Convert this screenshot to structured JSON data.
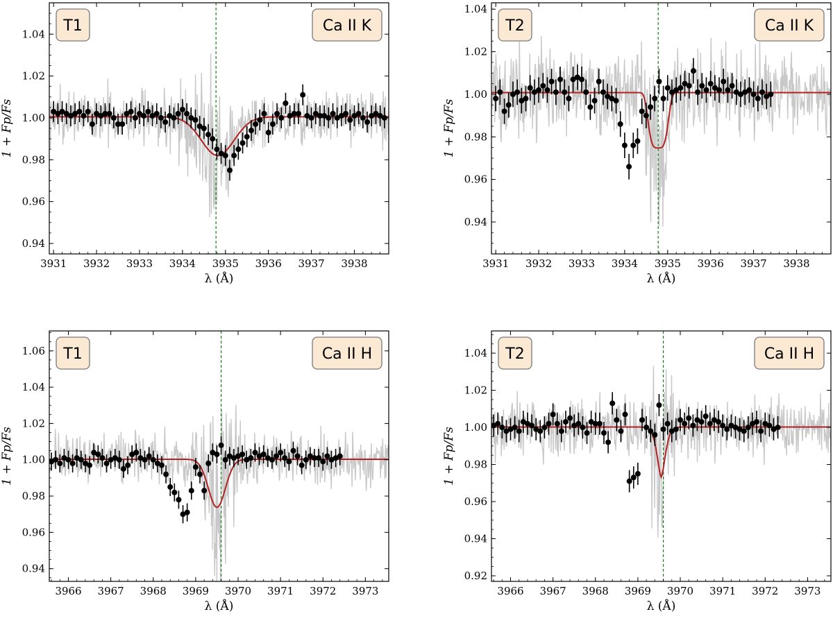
{
  "figure": {
    "y_axis_label": "1 + F_p/F_s",
    "colors": {
      "raw": "#c8c8c8",
      "binned": "#000000",
      "model": "#b22222",
      "line_center": "#1a7a1a",
      "badge_fill": "#fbe9d3",
      "badge_edge": "#7a7a7a"
    }
  },
  "chart_data": [
    {
      "type": "line",
      "panel": "top-left",
      "tag": "T1",
      "line": "Ca II K",
      "xlabel": "λ (Å)",
      "ylabel": "1 + Fp/Fs",
      "xlim": [
        3930.9,
        3938.8
      ],
      "ylim": [
        0.935,
        1.055
      ],
      "xticks": [
        3931,
        3932,
        3933,
        3934,
        3935,
        3936,
        3937,
        3938
      ],
      "yticks": [
        0.94,
        0.96,
        0.98,
        1.0,
        1.02,
        1.04
      ],
      "line_center": 3934.78,
      "model": {
        "baseline": 1.0005,
        "depth": 0.0185,
        "center": 3934.82,
        "sigma": 0.38
      },
      "raw_noise": {
        "base": 0.011,
        "peak": 0.045,
        "width": 0.35,
        "center": 3934.6
      },
      "binned": {
        "x_start": 3931.0,
        "x_step": 0.1,
        "err": 0.005,
        "y": [
          1.003,
          1.002,
          1.003,
          1.002,
          1.001,
          1.002,
          1.003,
          1.001,
          1.003,
          0.997,
          1.002,
          1.001,
          1.002,
          1.002,
          1.0,
          0.997,
          0.997,
          1.002,
          1.003,
          1.0,
          1.002,
          1.001,
          1.003,
          1.001,
          1.002,
          1.0,
          0.998,
          1.001,
          1.0,
          1.002,
          1.004,
          1.002,
          1.0,
          0.999,
          0.996,
          0.995,
          0.992,
          0.99,
          0.985,
          0.983,
          0.982,
          0.975,
          0.982,
          0.985,
          0.988,
          0.991,
          0.994,
          0.997,
          0.999,
          1.002,
          0.993,
          0.997,
          1.002,
          1.0,
          1.007,
          1.001,
          1.002,
          1.002,
          1.011,
          1.001,
          1.0,
          1.002,
          1.001,
          1.001,
          1.0,
          1.002,
          1.0,
          1.001,
          1.002,
          0.999,
          1.001,
          1.002,
          1.0,
          0.998,
          1.001,
          1.002,
          1.001,
          1.0
        ]
      }
    },
    {
      "type": "line",
      "panel": "top-right",
      "tag": "T2",
      "line": "Ca II K",
      "xlabel": "λ (Å)",
      "ylabel": "1 + Fp/Fs",
      "xlim": [
        3930.9,
        3938.8
      ],
      "ylim": [
        0.925,
        1.043
      ],
      "xticks": [
        3931,
        3932,
        3933,
        3934,
        3935,
        3936,
        3937,
        3938
      ],
      "yticks": [
        0.94,
        0.96,
        0.98,
        1.0,
        1.02,
        1.04
      ],
      "line_center": 3934.78,
      "model": {
        "baseline": 1.0008,
        "depth": 0.026,
        "center": 3934.78,
        "sigma": 0.22,
        "power": 4
      },
      "raw_noise": {
        "base": 0.017,
        "peak": 0.045,
        "width": 0.2,
        "center": 3934.8
      },
      "binned": {
        "x_start": 3931.0,
        "x_step": 0.1,
        "err": 0.006,
        "y": [
          0.998,
          1.001,
          0.992,
          0.995,
          1.0,
          1.001,
          0.997,
          0.998,
          1.003,
          1.001,
          1.002,
          1.004,
          1.002,
          1.006,
          1.001,
          1.007,
          1.001,
          0.998,
          1.007,
          1.008,
          1.007,
          1.001,
          0.994,
          0.997,
          1.006,
          1.001,
          0.999,
          0.998,
          0.997,
          0.986,
          0.976,
          0.966,
          0.976,
          0.978,
          0.992,
          0.99,
          0.994,
          0.998,
          1.006,
          0.998,
          1.003,
          1.001,
          1.002,
          1.003,
          1.005,
          1.004,
          1.011,
          1.001,
          1.004,
          1.002,
          1.005,
          1.003,
          1.002,
          1.006,
          1.002,
          1.004,
          1.001,
          1.0,
          1.001,
          1.002,
          1.0,
          0.998,
          1.001,
          0.999,
          1.0
        ]
      }
    },
    {
      "type": "line",
      "panel": "bottom-left",
      "tag": "T1",
      "line": "Ca II H",
      "xlabel": "λ (Å)",
      "ylabel": "1 + Fp/Fs",
      "xlim": [
        3965.55,
        3973.55
      ],
      "ylim": [
        0.933,
        1.071
      ],
      "xticks": [
        3966,
        3967,
        3968,
        3969,
        3970,
        3971,
        3972,
        3973
      ],
      "yticks": [
        0.94,
        0.96,
        0.98,
        1.0,
        1.02,
        1.04,
        1.06
      ],
      "line_center": 3969.6,
      "model": {
        "baseline": 1.0003,
        "depth": 0.0265,
        "center": 3969.5,
        "sigma": 0.2
      },
      "raw_noise": {
        "base": 0.011,
        "peak": 0.045,
        "width": 0.3,
        "center": 3969.65
      },
      "binned": {
        "x_start": 3965.6,
        "x_step": 0.1,
        "err": 0.005,
        "y": [
          0.999,
          1.0,
          0.998,
          1.001,
          1.0,
          0.998,
          1.001,
          1.0,
          0.998,
          0.997,
          1.004,
          1.003,
          1.001,
          0.998,
          1.0,
          1.001,
          1.0,
          0.995,
          0.997,
          1.003,
          1.004,
          1.001,
          1.0,
          1.002,
          1.0,
          0.998,
          0.997,
          0.992,
          0.985,
          0.982,
          0.978,
          0.97,
          0.971,
          0.983,
          0.996,
          0.992,
          0.983,
          0.998,
          1.004,
          1.003,
          1.008,
          1.0,
          1.002,
          1.001,
          1.002,
          1.003,
          1.0,
          1.001,
          1.004,
          1.002,
          1.003,
          1.001,
          1.0,
          1.002,
          1.004,
          1.001,
          0.999,
          1.005,
          1.002,
          0.997,
          1.0,
          1.002,
          1.001,
          1.001,
          0.999,
          1.002,
          1.0,
          1.001,
          1.002
        ]
      }
    },
    {
      "type": "line",
      "panel": "bottom-right",
      "tag": "T2",
      "line": "Ca II H",
      "xlabel": "λ (Å)",
      "ylabel": "1 + Fp/Fs",
      "xlim": [
        3965.55,
        3973.55
      ],
      "ylim": [
        0.917,
        1.052
      ],
      "xticks": [
        3966,
        3967,
        3968,
        3969,
        3970,
        3971,
        3972,
        3973
      ],
      "yticks": [
        0.92,
        0.94,
        0.96,
        0.98,
        1.0,
        1.02,
        1.04
      ],
      "line_center": 3969.6,
      "model": {
        "baseline": 1.0002,
        "depth": 0.027,
        "center": 3969.55,
        "sigma": 0.09,
        "power": 1.6
      },
      "raw_noise": {
        "base": 0.014,
        "peak": 0.04,
        "width": 0.2,
        "center": 3969.5
      },
      "binned": {
        "x_start": 3965.6,
        "x_step": 0.1,
        "err": 0.006,
        "y": [
          1.001,
          1.002,
          1.0,
          0.998,
          0.999,
          1.0,
          0.998,
          1.003,
          1.002,
          1.001,
          0.999,
          0.998,
          1.0,
          1.002,
          1.007,
          1.002,
          0.998,
          1.003,
          1.005,
          1.001,
          1.002,
          1.0,
          0.997,
          1.003,
          1.002,
          1.002,
          0.997,
          0.992,
          1.013,
          1.004,
          0.998,
          1.007,
          0.971,
          0.973,
          0.975,
          1.004,
          1.0,
          0.998,
          0.996,
          1.012,
          0.999,
          1.002,
          0.998,
          0.999,
          1.004,
          1.002,
          1.005,
          1.001,
          1.004,
          1.003,
          1.006,
          1.002,
          1.004,
          1.003,
          1.001,
          0.999,
          1.001,
          1.0,
          0.999,
          0.998,
          1.0,
          1.002,
          1.003,
          0.998,
          1.002,
          1.001,
          0.999,
          1.0
        ]
      }
    }
  ]
}
